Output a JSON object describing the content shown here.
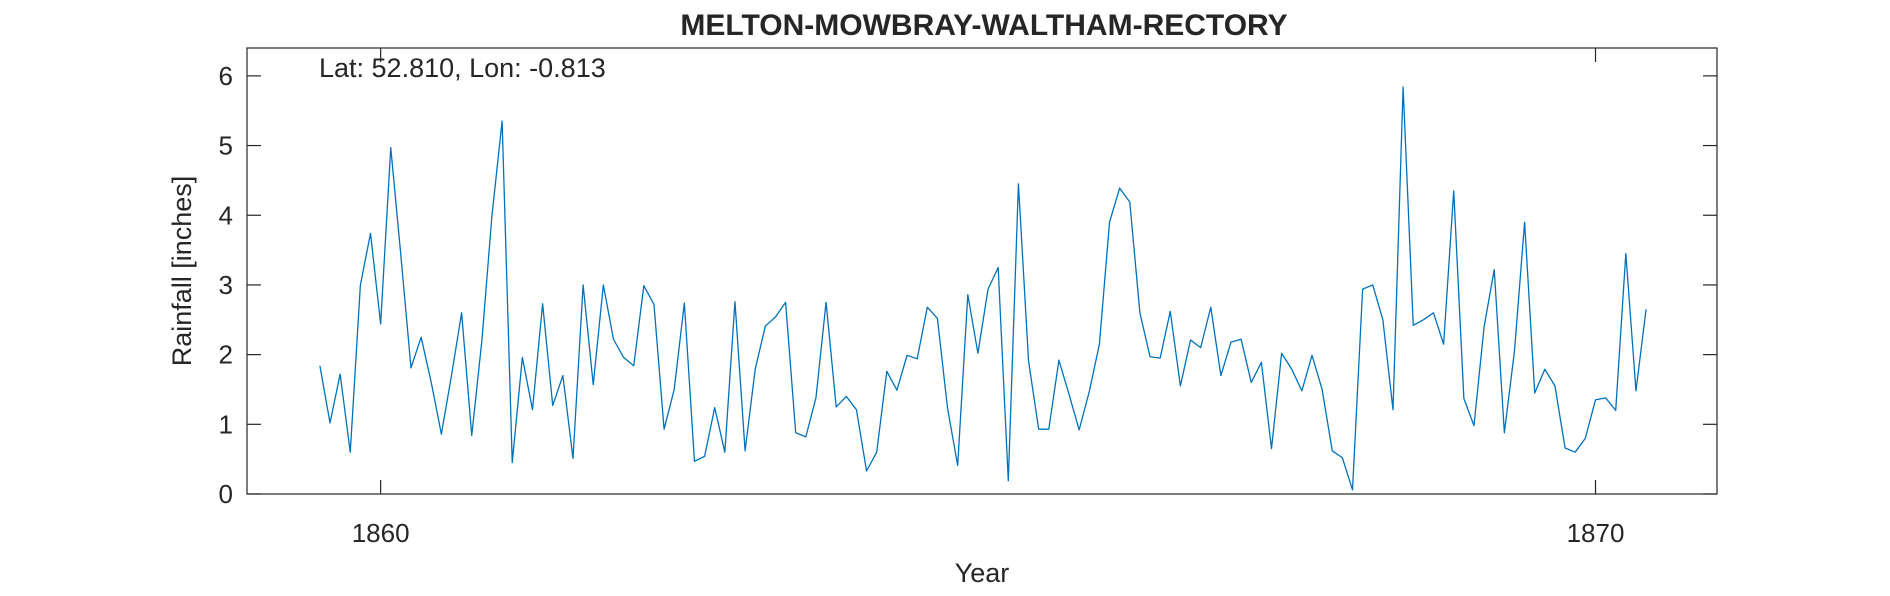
{
  "chart_data": {
    "type": "line",
    "title": "MELTON-MOWBRAY-WALTHAM-RECTORY",
    "annotation": "Lat: 52.810, Lon: -0.813",
    "xlabel": "Year",
    "ylabel": "Rainfall [inches]",
    "xlim": [
      1858.9,
      1871.0
    ],
    "ylim": [
      0,
      6.4
    ],
    "xticks": [
      1860,
      1870
    ],
    "xtick_labels": [
      "1860",
      "1870"
    ],
    "yticks": [
      0,
      1,
      2,
      3,
      4,
      5,
      6
    ],
    "ytick_labels": [
      "0",
      "1",
      "2",
      "3",
      "4",
      "5",
      "6"
    ],
    "grid": false,
    "box": true,
    "series": [
      {
        "color": "#0072BD",
        "x_start": 1859.5,
        "x_step": 0.08333,
        "values": [
          1.84,
          1.02,
          1.72,
          0.6,
          3.0,
          3.74,
          2.44,
          4.97,
          3.42,
          1.81,
          2.25,
          1.6,
          0.86,
          1.7,
          2.6,
          0.84,
          2.2,
          4.0,
          5.35,
          0.45,
          1.96,
          1.21,
          2.73,
          1.27,
          1.7,
          0.51,
          3.0,
          1.57,
          3.0,
          2.22,
          1.96,
          1.84,
          2.99,
          2.72,
          0.93,
          1.5,
          2.74,
          0.47,
          0.54,
          1.24,
          0.6,
          2.76,
          0.62,
          1.79,
          2.41,
          2.54,
          2.75,
          0.88,
          0.82,
          1.38,
          2.75,
          1.25,
          1.4,
          1.21,
          0.33,
          0.6,
          1.76,
          1.49,
          1.99,
          1.94,
          2.68,
          2.52,
          1.23,
          0.41,
          2.86,
          2.02,
          2.94,
          3.25,
          0.19,
          4.45,
          1.91,
          0.93,
          0.93,
          1.92,
          1.43,
          0.92,
          1.47,
          2.15,
          3.9,
          4.39,
          4.19,
          2.6,
          1.97,
          1.95,
          2.62,
          1.55,
          2.21,
          2.1,
          2.68,
          1.7,
          2.18,
          2.22,
          1.6,
          1.89,
          0.65,
          2.02,
          1.79,
          1.48,
          1.99,
          1.5,
          0.62,
          0.52,
          0.06,
          2.94,
          3.0,
          2.5,
          1.21,
          5.84,
          2.42,
          2.5,
          2.6,
          2.15,
          4.35,
          1.37,
          0.98,
          2.4,
          3.22,
          0.88,
          2.05,
          3.9,
          1.45,
          1.79,
          1.55,
          0.66,
          0.6,
          0.8,
          1.35,
          1.38,
          1.2,
          3.45,
          1.48,
          2.65
        ]
      }
    ]
  }
}
